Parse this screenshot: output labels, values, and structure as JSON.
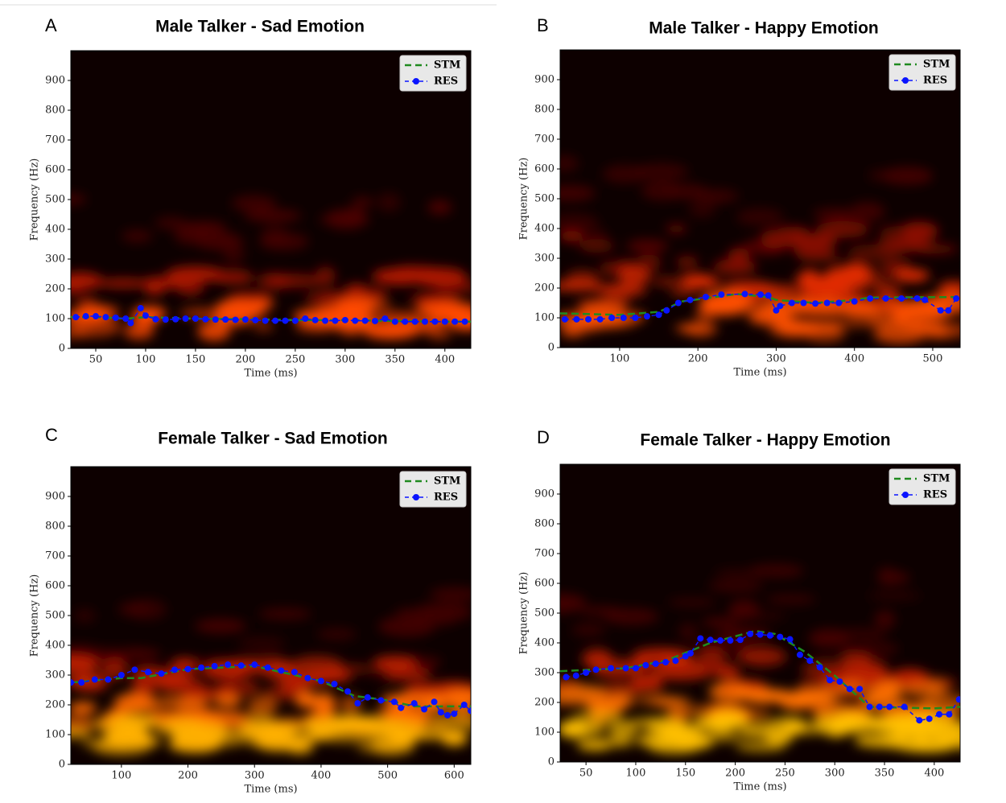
{
  "chart_data": [
    {
      "type": "line",
      "panel_label": "A",
      "title": "Male Talker - Sad Emotion",
      "x_label": "Time (ms)",
      "y_label": "Frequency (Hz)",
      "xlim": [
        25,
        426
      ],
      "ylim": [
        0,
        1000
      ],
      "xticks": [
        50,
        100,
        150,
        200,
        250,
        300,
        350,
        400
      ],
      "yticks": [
        0,
        100,
        200,
        300,
        400,
        500,
        600,
        700,
        800,
        900
      ],
      "legend": "upper right",
      "series": [
        {
          "name": "STM",
          "color": "#1f8a1f",
          "line_style": "dashed",
          "x": [
            25,
            50,
            80,
            100,
            150,
            200,
            250,
            300,
            350,
            400,
            426
          ],
          "values": [
            105,
            105,
            100,
            105,
            100,
            98,
            95,
            95,
            92,
            90,
            90
          ]
        },
        {
          "name": "RES",
          "color": "#0a14ff",
          "line_style": "dashed",
          "marker": "o",
          "x": [
            30,
            40,
            50,
            60,
            70,
            80,
            85,
            95,
            100,
            110,
            120,
            130,
            140,
            150,
            160,
            170,
            180,
            190,
            200,
            210,
            220,
            230,
            240,
            250,
            260,
            270,
            280,
            290,
            300,
            310,
            320,
            330,
            340,
            350,
            360,
            370,
            380,
            390,
            400,
            410,
            420
          ],
          "values": [
            105,
            108,
            108,
            105,
            103,
            100,
            85,
            135,
            110,
            98,
            97,
            98,
            100,
            100,
            98,
            97,
            97,
            96,
            97,
            95,
            93,
            93,
            93,
            93,
            100,
            95,
            93,
            93,
            95,
            93,
            93,
            92,
            100,
            90,
            90,
            90,
            90,
            90,
            90,
            90,
            90
          ]
        }
      ]
    },
    {
      "type": "line",
      "panel_label": "B",
      "title": "Male Talker - Happy Emotion",
      "x_label": "Time (ms)",
      "y_label": "Frequency (Hz)",
      "xlim": [
        24,
        535
      ],
      "ylim": [
        0,
        1000
      ],
      "xticks": [
        100,
        200,
        300,
        400,
        500
      ],
      "yticks": [
        0,
        100,
        200,
        300,
        400,
        500,
        600,
        700,
        800,
        900
      ],
      "legend": "upper right",
      "series": [
        {
          "name": "STM",
          "color": "#1f8a1f",
          "line_style": "dashed",
          "x": [
            24,
            100,
            150,
            180,
            250,
            290,
            300,
            350,
            400,
            420,
            535
          ],
          "values": [
            115,
            110,
            120,
            155,
            180,
            170,
            160,
            150,
            160,
            168,
            170
          ]
        },
        {
          "name": "RES",
          "color": "#0a14ff",
          "line_style": "dashed",
          "marker": "o",
          "x": [
            30,
            45,
            60,
            75,
            90,
            105,
            120,
            135,
            150,
            160,
            175,
            190,
            210,
            230,
            260,
            280,
            290,
            300,
            305,
            320,
            335,
            350,
            365,
            380,
            400,
            420,
            440,
            460,
            480,
            490,
            510,
            520,
            530
          ],
          "values": [
            95,
            95,
            95,
            95,
            100,
            100,
            100,
            105,
            110,
            125,
            150,
            160,
            170,
            178,
            180,
            178,
            175,
            125,
            140,
            150,
            150,
            148,
            150,
            150,
            155,
            165,
            165,
            165,
            165,
            160,
            125,
            125,
            165
          ]
        }
      ]
    },
    {
      "type": "line",
      "panel_label": "C",
      "title": "Female Talker - Sad Emotion",
      "x_label": "Time (ms)",
      "y_label": "Frequency (Hz)",
      "xlim": [
        24,
        625
      ],
      "ylim": [
        0,
        1000
      ],
      "xticks": [
        100,
        200,
        300,
        400,
        500,
        600
      ],
      "yticks": [
        0,
        100,
        200,
        300,
        400,
        500,
        600,
        700,
        800,
        900
      ],
      "legend": "upper right",
      "series": [
        {
          "name": "STM",
          "color": "#1f8a1f",
          "line_style": "dashed",
          "x": [
            24,
            100,
            130,
            200,
            300,
            400,
            450,
            500,
            540,
            625
          ],
          "values": [
            275,
            290,
            290,
            320,
            330,
            280,
            230,
            215,
            195,
            195
          ]
        },
        {
          "name": "RES",
          "color": "#0a14ff",
          "line_style": "dashed",
          "marker": "o",
          "x": [
            24,
            40,
            60,
            80,
            100,
            120,
            140,
            160,
            180,
            200,
            220,
            240,
            260,
            280,
            300,
            320,
            340,
            360,
            380,
            400,
            420,
            440,
            455,
            470,
            490,
            510,
            520,
            540,
            555,
            570,
            580,
            590,
            600,
            615,
            625
          ],
          "values": [
            275,
            275,
            285,
            285,
            300,
            318,
            310,
            305,
            318,
            320,
            325,
            330,
            335,
            332,
            335,
            325,
            315,
            310,
            290,
            280,
            270,
            245,
            205,
            225,
            215,
            210,
            190,
            205,
            185,
            210,
            175,
            165,
            170,
            200,
            180
          ]
        }
      ]
    },
    {
      "type": "line",
      "panel_label": "D",
      "title": "Female Talker - Happy Emotion",
      "x_label": "Time (ms)",
      "y_label": "Frequency (Hz)",
      "xlim": [
        24,
        426
      ],
      "ylim": [
        0,
        1000
      ],
      "xticks": [
        50,
        100,
        150,
        200,
        250,
        300,
        350,
        400
      ],
      "yticks": [
        0,
        100,
        200,
        300,
        400,
        500,
        600,
        700,
        800,
        900
      ],
      "legend": "upper right",
      "series": [
        {
          "name": "STM",
          "color": "#1f8a1f",
          "line_style": "dashed",
          "x": [
            24,
            90,
            130,
            175,
            220,
            240,
            270,
            300,
            335,
            400,
            426
          ],
          "values": [
            305,
            315,
            340,
            400,
            440,
            430,
            370,
            290,
            185,
            180,
            185
          ]
        },
        {
          "name": "RES",
          "color": "#0a14ff",
          "line_style": "dashed",
          "marker": "o",
          "x": [
            30,
            40,
            50,
            60,
            75,
            90,
            100,
            110,
            120,
            130,
            140,
            150,
            155,
            165,
            175,
            185,
            195,
            205,
            215,
            225,
            235,
            245,
            255,
            265,
            275,
            285,
            295,
            305,
            315,
            325,
            335,
            345,
            355,
            370,
            385,
            395,
            405,
            415,
            425
          ],
          "values": [
            285,
            290,
            300,
            310,
            315,
            315,
            315,
            325,
            330,
            335,
            340,
            355,
            365,
            415,
            410,
            408,
            408,
            410,
            430,
            428,
            425,
            420,
            412,
            360,
            340,
            318,
            275,
            270,
            245,
            245,
            185,
            185,
            185,
            185,
            140,
            145,
            160,
            160,
            210
          ]
        }
      ]
    }
  ]
}
